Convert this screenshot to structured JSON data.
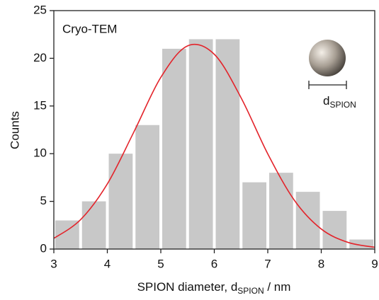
{
  "chart_data": {
    "type": "histogram",
    "annotation": "Cryo-TEM",
    "xlabel": [
      "SPION diameter, d",
      "SPION",
      " / nm"
    ],
    "ylabel": "Counts",
    "inset_label": [
      "d",
      "SPION"
    ],
    "bins": [
      3,
      3.5,
      4,
      4.5,
      5,
      5.5,
      6,
      6.5,
      7,
      7.5,
      8,
      8.5,
      9
    ],
    "values": [
      3,
      5,
      10,
      13,
      21,
      22,
      22,
      7,
      8,
      6,
      4,
      1
    ],
    "color": "#c8c8c8",
    "fit": {
      "color": "#e3242b",
      "x": [
        3,
        3.5,
        4,
        4.5,
        5,
        5.5,
        6,
        6.5,
        7,
        7.5,
        8,
        8.5,
        9
      ],
      "values": [
        1.12,
        3.08,
        6.83,
        12.32,
        18.0,
        21.3,
        20.42,
        15.87,
        9.98,
        5.09,
        2.1,
        0.7,
        0.19
      ]
    },
    "xlim": [
      3,
      9
    ],
    "xticks": [
      3,
      4,
      5,
      6,
      7,
      8,
      9
    ],
    "ylim": [
      0,
      25
    ],
    "yticks": [
      0,
      5,
      10,
      15,
      20,
      25
    ]
  }
}
